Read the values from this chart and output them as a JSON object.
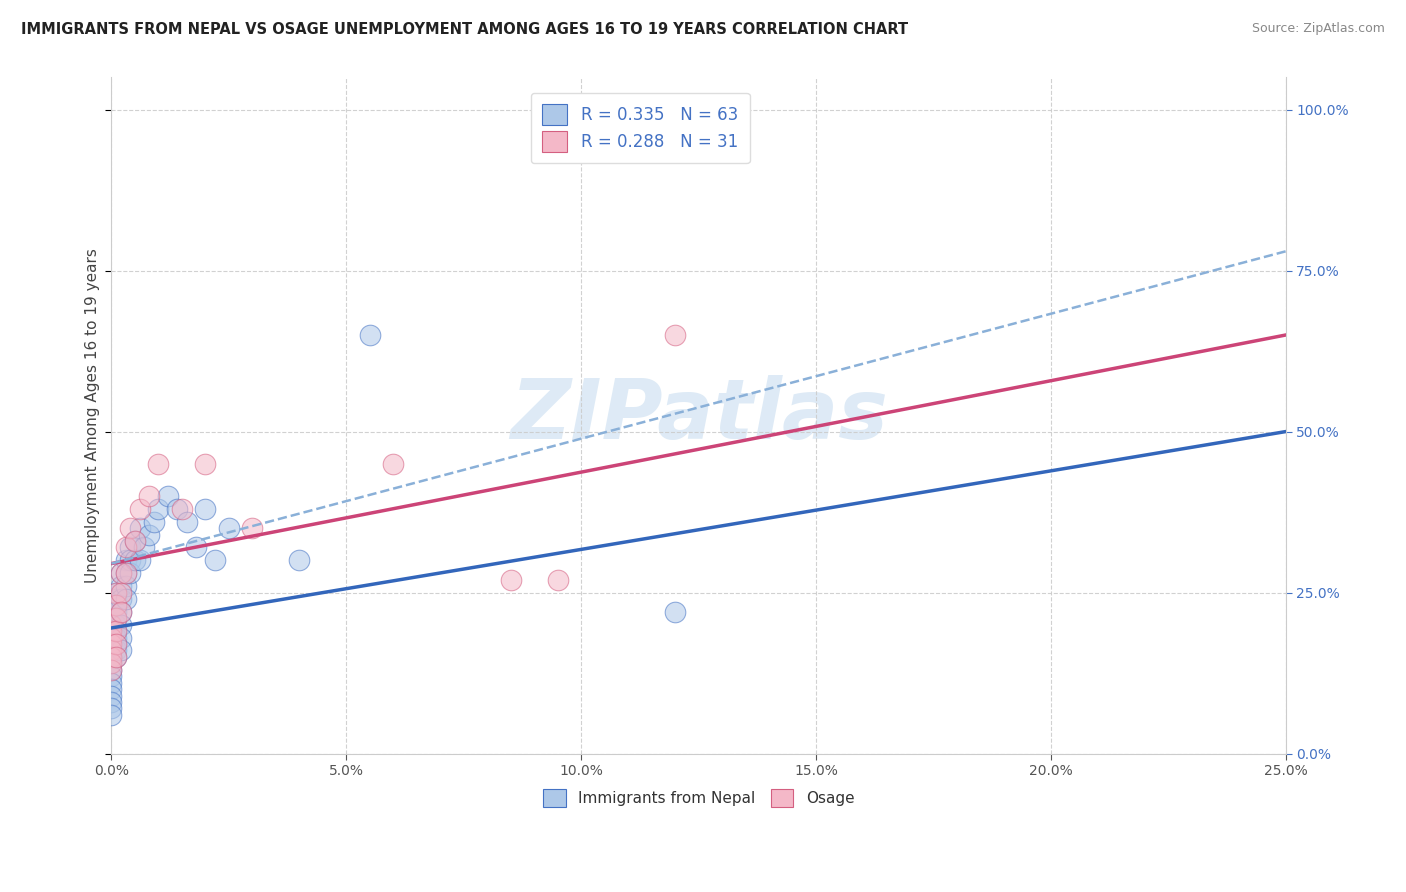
{
  "title": "IMMIGRANTS FROM NEPAL VS OSAGE UNEMPLOYMENT AMONG AGES 16 TO 19 YEARS CORRELATION CHART",
  "source": "Source: ZipAtlas.com",
  "ylabel_label": "Unemployment Among Ages 16 to 19 years",
  "legend_nepal_R": "R = 0.335",
  "legend_nepal_N": "N = 63",
  "legend_osage_R": "R = 0.288",
  "legend_osage_N": "N = 31",
  "legend_label_nepal": "Immigrants from Nepal",
  "legend_label_osage": "Osage",
  "nepal_color": "#adc8e8",
  "nepal_color_dark": "#4472c4",
  "osage_color": "#f4b8c8",
  "osage_color_dark": "#d45f80",
  "trend_nepal_color": "#3366bb",
  "trend_osage_color": "#cc4477",
  "trend_dashed_color": "#8ab0d8",
  "watermark": "ZIPatlas",
  "watermark_color": "#c8ddf0",
  "right_tick_color": "#4472c4",
  "nepal_x": [
    0.0,
    0.0,
    0.0,
    0.0,
    0.0,
    0.0,
    0.0,
    0.0,
    0.0,
    0.0,
    0.0,
    0.0,
    0.0,
    0.0,
    0.0,
    0.0,
    0.0,
    0.0,
    0.0,
    0.0,
    0.001,
    0.001,
    0.001,
    0.001,
    0.001,
    0.001,
    0.001,
    0.001,
    0.001,
    0.001,
    0.001,
    0.002,
    0.002,
    0.002,
    0.002,
    0.002,
    0.002,
    0.002,
    0.003,
    0.003,
    0.003,
    0.003,
    0.004,
    0.004,
    0.004,
    0.005,
    0.005,
    0.006,
    0.006,
    0.007,
    0.008,
    0.009,
    0.01,
    0.012,
    0.014,
    0.016,
    0.018,
    0.02,
    0.022,
    0.025,
    0.04,
    0.055,
    0.12
  ],
  "nepal_y": [
    0.2,
    0.2,
    0.2,
    0.19,
    0.18,
    0.18,
    0.17,
    0.17,
    0.16,
    0.15,
    0.15,
    0.14,
    0.13,
    0.12,
    0.11,
    0.1,
    0.09,
    0.08,
    0.07,
    0.06,
    0.25,
    0.24,
    0.23,
    0.22,
    0.21,
    0.2,
    0.19,
    0.18,
    0.17,
    0.16,
    0.15,
    0.28,
    0.26,
    0.24,
    0.22,
    0.2,
    0.18,
    0.16,
    0.3,
    0.28,
    0.26,
    0.24,
    0.32,
    0.3,
    0.28,
    0.33,
    0.3,
    0.35,
    0.3,
    0.32,
    0.34,
    0.36,
    0.38,
    0.4,
    0.38,
    0.36,
    0.32,
    0.38,
    0.3,
    0.35,
    0.3,
    0.65,
    0.22
  ],
  "osage_x": [
    0.0,
    0.0,
    0.0,
    0.0,
    0.0,
    0.0,
    0.0,
    0.0,
    0.001,
    0.001,
    0.001,
    0.001,
    0.001,
    0.001,
    0.002,
    0.002,
    0.002,
    0.003,
    0.003,
    0.004,
    0.005,
    0.006,
    0.008,
    0.01,
    0.015,
    0.02,
    0.03,
    0.06,
    0.085,
    0.095,
    0.12
  ],
  "osage_y": [
    0.2,
    0.19,
    0.18,
    0.17,
    0.16,
    0.15,
    0.14,
    0.13,
    0.25,
    0.23,
    0.21,
    0.19,
    0.17,
    0.15,
    0.28,
    0.25,
    0.22,
    0.32,
    0.28,
    0.35,
    0.33,
    0.38,
    0.4,
    0.45,
    0.38,
    0.45,
    0.35,
    0.45,
    0.27,
    0.27,
    0.65
  ],
  "xlim": [
    0.0,
    0.25
  ],
  "ylim": [
    0.0,
    1.05
  ],
  "xticks": [
    0.0,
    0.05,
    0.1,
    0.15,
    0.2,
    0.25
  ],
  "yticks": [
    0.0,
    0.25,
    0.5,
    0.75,
    1.0
  ]
}
